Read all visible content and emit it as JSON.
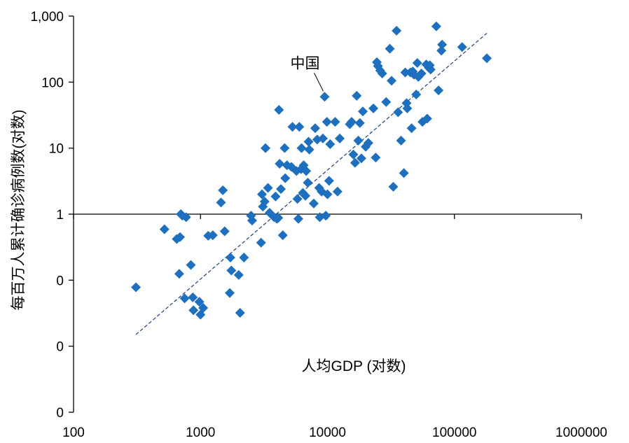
{
  "chart_data": {
    "type": "scatter",
    "title": "",
    "xlabel": "人均GDP (对数)",
    "ylabel": "每百万人累计确诊病例数(对数)",
    "x_scale": "log",
    "y_scale": "log",
    "xlim": [
      100,
      1000000
    ],
    "ylim": [
      0.001,
      1000
    ],
    "x_ticks": [
      "100",
      "1000",
      "10000",
      "100000",
      "1000000"
    ],
    "y_ticks": [
      {
        "value": 0.001,
        "label": "0"
      },
      {
        "value": 0.01,
        "label": "0"
      },
      {
        "value": 0.1,
        "label": "0"
      },
      {
        "value": 1,
        "label": "1"
      },
      {
        "value": 10,
        "label": "10"
      },
      {
        "value": 100,
        "label": "100"
      },
      {
        "value": 1000,
        "label": "1,000"
      }
    ],
    "x_axis_crosses_y_at": 1,
    "grid": false,
    "legend": "none",
    "annotation": {
      "text": "中国",
      "x": 9500,
      "y": 60
    },
    "trendline": {
      "style": "dashed",
      "from": [
        310,
        0.015
      ],
      "to": [
        180000,
        550
      ]
    },
    "colors": {
      "marker": "#1f6fbf",
      "trendline": "#1f3f7a",
      "axis": "#000000"
    },
    "series": [
      {
        "points": [
          [
            310,
            0.078
          ],
          [
            520,
            0.59
          ],
          [
            650,
            0.42
          ],
          [
            680,
            0.125
          ],
          [
            690,
            0.45
          ],
          [
            700,
            1.0
          ],
          [
            720,
            0.95
          ],
          [
            750,
            0.053
          ],
          [
            770,
            0.9
          ],
          [
            840,
            0.17
          ],
          [
            870,
            0.055
          ],
          [
            880,
            0.035
          ],
          [
            980,
            0.047
          ],
          [
            1000,
            0.03
          ],
          [
            1050,
            0.038
          ],
          [
            1150,
            0.47
          ],
          [
            1250,
            0.48
          ],
          [
            1450,
            1.5
          ],
          [
            1500,
            2.3
          ],
          [
            1550,
            0.55
          ],
          [
            1700,
            0.064
          ],
          [
            1720,
            0.22
          ],
          [
            1750,
            0.14
          ],
          [
            2000,
            0.12
          ],
          [
            2050,
            0.032
          ],
          [
            2200,
            0.22
          ],
          [
            2500,
            0.95
          ],
          [
            2550,
            0.8
          ],
          [
            3000,
            0.37
          ],
          [
            3050,
            2.0
          ],
          [
            3100,
            1.3
          ],
          [
            3200,
            1.55
          ],
          [
            3250,
            10
          ],
          [
            3400,
            2.5
          ],
          [
            3500,
            1.05
          ],
          [
            3800,
            0.9
          ],
          [
            3900,
            1.85
          ],
          [
            4000,
            0.85
          ],
          [
            4100,
            0.88
          ],
          [
            4150,
            38
          ],
          [
            4200,
            5.8
          ],
          [
            4300,
            2.4
          ],
          [
            4450,
            0.48
          ],
          [
            4600,
            10
          ],
          [
            4650,
            3.5
          ],
          [
            4800,
            5.5
          ],
          [
            5200,
            5.2
          ],
          [
            5300,
            21
          ],
          [
            5700,
            4.5
          ],
          [
            5800,
            1.7
          ],
          [
            5900,
            0.85
          ],
          [
            6000,
            21
          ],
          [
            6200,
            4.8
          ],
          [
            6250,
            10
          ],
          [
            6400,
            2.1
          ],
          [
            6500,
            5.5
          ],
          [
            6700,
            1.9
          ],
          [
            6800,
            4.5
          ],
          [
            7000,
            3.0
          ],
          [
            7100,
            12.5
          ],
          [
            7200,
            9.5
          ],
          [
            7800,
            1.45
          ],
          [
            8000,
            20
          ],
          [
            8300,
            13.5
          ],
          [
            8600,
            2.5
          ],
          [
            8700,
            0.9
          ],
          [
            9000,
            2.2
          ],
          [
            9200,
            14
          ],
          [
            9500,
            60
          ],
          [
            9700,
            0.95
          ],
          [
            9900,
            25
          ],
          [
            10000,
            2.0
          ],
          [
            10300,
            3.2
          ],
          [
            10500,
            11.5
          ],
          [
            11500,
            25
          ],
          [
            12000,
            2.2
          ],
          [
            12500,
            14
          ],
          [
            15000,
            23
          ],
          [
            15500,
            25
          ],
          [
            16000,
            8
          ],
          [
            16500,
            6
          ],
          [
            17000,
            62
          ],
          [
            17500,
            13
          ],
          [
            18000,
            24
          ],
          [
            18500,
            7
          ],
          [
            19000,
            36
          ],
          [
            20000,
            10.5
          ],
          [
            21000,
            12
          ],
          [
            23000,
            40
          ],
          [
            24000,
            7.2
          ],
          [
            24500,
            200
          ],
          [
            25000,
            175
          ],
          [
            26000,
            150
          ],
          [
            27000,
            135
          ],
          [
            29000,
            50
          ],
          [
            31000,
            320
          ],
          [
            32000,
            105
          ],
          [
            33000,
            2.6
          ],
          [
            35000,
            600
          ],
          [
            36000,
            35
          ],
          [
            38000,
            13
          ],
          [
            40000,
            4.2
          ],
          [
            41000,
            140
          ],
          [
            42000,
            48
          ],
          [
            42500,
            40
          ],
          [
            45000,
            140
          ],
          [
            46000,
            20
          ],
          [
            47000,
            145
          ],
          [
            48000,
            130
          ],
          [
            50000,
            65
          ],
          [
            51000,
            195
          ],
          [
            52000,
            120
          ],
          [
            55000,
            135
          ],
          [
            56000,
            25
          ],
          [
            60000,
            185
          ],
          [
            61000,
            28
          ],
          [
            63000,
            165
          ],
          [
            64000,
            180
          ],
          [
            65000,
            155
          ],
          [
            72000,
            700
          ],
          [
            75000,
            75
          ],
          [
            79000,
            300
          ],
          [
            80000,
            370
          ],
          [
            115000,
            340
          ],
          [
            180000,
            230
          ]
        ]
      }
    ]
  }
}
